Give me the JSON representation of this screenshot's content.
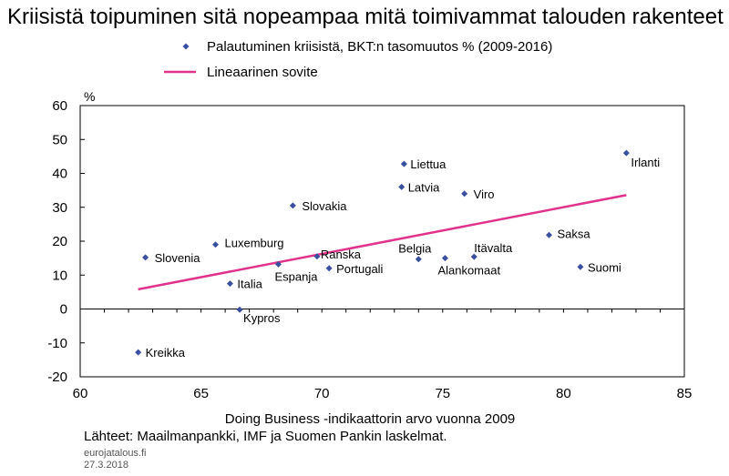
{
  "chart_data": {
    "type": "scatter",
    "title": "Kriisistä toipuminen sitä nopeampaa mitä toimivammat talouden rakenteet",
    "xlabel": "Doing Business -indikaattorin arvo vuonna 2009",
    "ylabel": "%",
    "xlim": [
      60,
      85
    ],
    "ylim": [
      -20,
      60
    ],
    "xticks": [
      60,
      65,
      70,
      75,
      80,
      85
    ],
    "yticks": [
      -20,
      -10,
      0,
      10,
      20,
      30,
      40,
      50,
      60
    ],
    "grid": false,
    "legend_position": "top",
    "series": [
      {
        "name": "Palautuminen kriisistä, BKT:n tasomuutos % (2009-2016)",
        "type": "scatter",
        "color": "#3B4FA0",
        "marker": "diamond",
        "points": [
          {
            "label": "Irlanti",
            "x": 82.6,
            "y": 46.0
          },
          {
            "label": "Liettua",
            "x": 73.4,
            "y": 42.8
          },
          {
            "label": "Latvia",
            "x": 73.3,
            "y": 36.0
          },
          {
            "label": "Viro",
            "x": 75.9,
            "y": 34.0
          },
          {
            "label": "Slovakia",
            "x": 68.8,
            "y": 30.5
          },
          {
            "label": "Saksa",
            "x": 79.4,
            "y": 21.8
          },
          {
            "label": "Luxemburg",
            "x": 65.6,
            "y": 19.0
          },
          {
            "label": "Slovenia",
            "x": 62.7,
            "y": 15.2
          },
          {
            "label": "Ranska",
            "x": 69.8,
            "y": 15.5
          },
          {
            "label": "Belgia",
            "x": 74.0,
            "y": 14.7
          },
          {
            "label": "Alankomaat",
            "x": 75.1,
            "y": 15.0
          },
          {
            "label": "Itävalta",
            "x": 76.3,
            "y": 15.4
          },
          {
            "label": "Espanja",
            "x": 68.2,
            "y": 13.2
          },
          {
            "label": "Portugali",
            "x": 70.3,
            "y": 12.0
          },
          {
            "label": "Suomi",
            "x": 80.7,
            "y": 12.4
          },
          {
            "label": "Italia",
            "x": 66.2,
            "y": 7.5
          },
          {
            "label": "Kypros",
            "x": 66.6,
            "y": -0.2
          },
          {
            "label": "Kreikka",
            "x": 62.4,
            "y": -12.8
          }
        ]
      },
      {
        "name": "Lineaarinen sovite",
        "type": "line",
        "color": "#E0338C",
        "points": [
          {
            "x": 62.4,
            "y": 5.8
          },
          {
            "x": 82.6,
            "y": 33.6
          }
        ]
      }
    ]
  },
  "source": "Lähteet: Maailmanpankki, IMF ja Suomen Pankin laskelmat.",
  "site": "eurojatalous.fi",
  "date": "27.3.2018"
}
